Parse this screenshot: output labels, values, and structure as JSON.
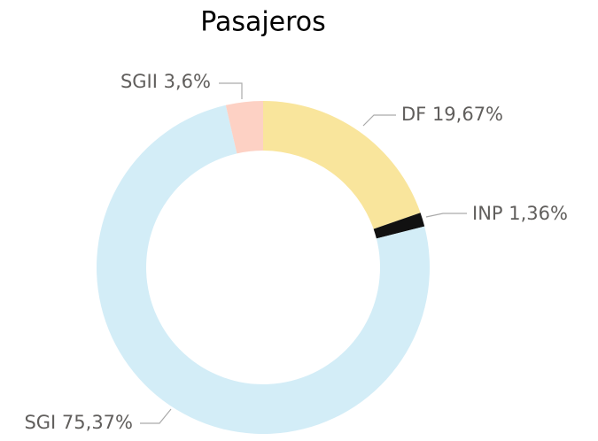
{
  "chart_data": {
    "type": "donut",
    "title": "Pasajeros",
    "categories": [
      "DF",
      "INP",
      "SGI",
      "SGII"
    ],
    "values": [
      19.67,
      1.36,
      75.37,
      3.6
    ],
    "value_labels": [
      "19,67%",
      "1,36%",
      "75,37%",
      "3,6%"
    ],
    "colors": [
      "#f9e59c",
      "#111111",
      "#d3edf7",
      "#fdd1c4"
    ]
  }
}
